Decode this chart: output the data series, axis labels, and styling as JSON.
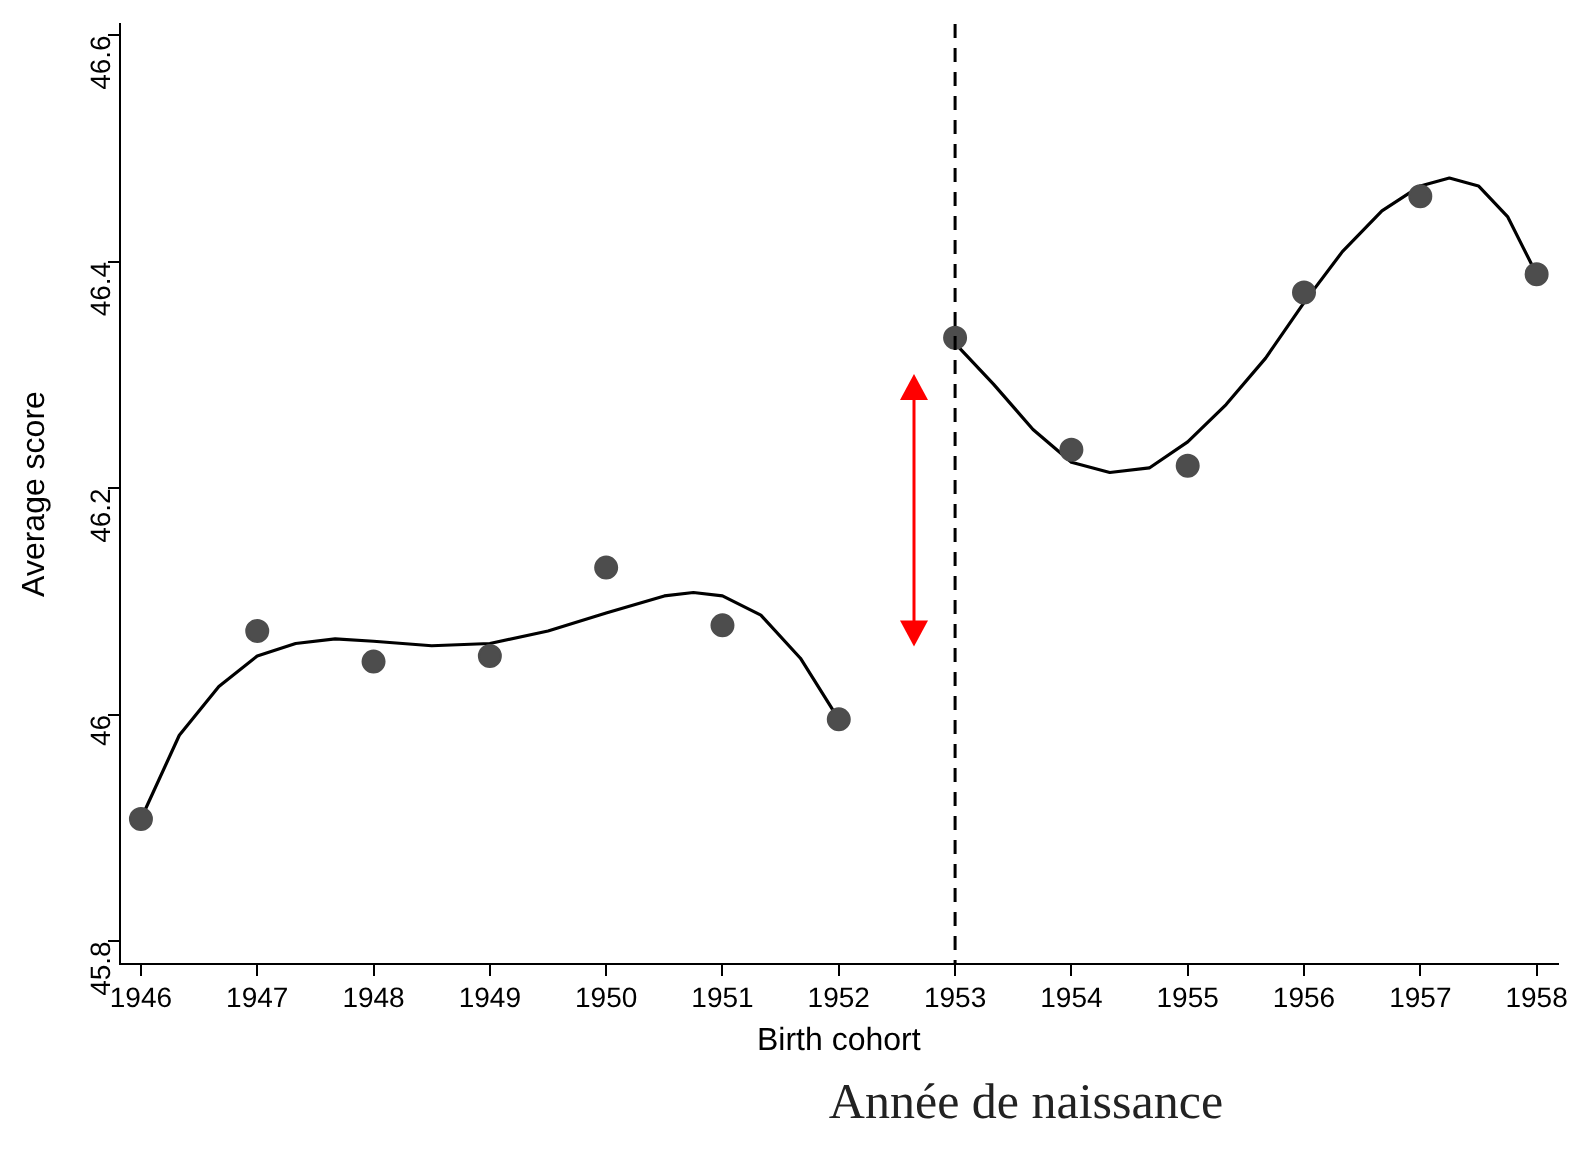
{
  "chart_data": {
    "type": "scatter",
    "xlabel": "Birth cohort",
    "ylabel": "Average score",
    "annotations": [
      "Année de naissance"
    ],
    "xlim": [
      1945.82,
      1958.18
    ],
    "xticks": [
      1946,
      1947,
      1948,
      1949,
      1950,
      1951,
      1952,
      1953,
      1954,
      1955,
      1956,
      1957,
      1958
    ],
    "ylim": [
      45.78,
      46.61
    ],
    "yticks": [
      45.8,
      46,
      46.2,
      46.4,
      46.6
    ],
    "grid": false,
    "legend": false,
    "marker": "circle",
    "series": [
      {
        "type": "scatter",
        "color": "#4d4d4d",
        "x": [
          1946,
          1947,
          1948,
          1949,
          1950,
          1951,
          1952,
          1953,
          1954,
          1955,
          1956,
          1957,
          1958
        ],
        "values": [
          45.908,
          46.074,
          46.047,
          46.052,
          46.13,
          46.079,
          45.996,
          46.333,
          46.234,
          46.22,
          46.373,
          46.458,
          46.389
        ]
      },
      {
        "type": "line",
        "marker": "none",
        "color": "#000000",
        "x": [
          1946,
          1946.33,
          1946.67,
          1947,
          1947.33,
          1947.67,
          1948,
          1948.5,
          1949,
          1949.5,
          1950,
          1950.5,
          1950.75,
          1951,
          1951.33,
          1951.67,
          1952
        ],
        "values": [
          45.908,
          45.982,
          46.025,
          46.052,
          46.063,
          46.067,
          46.065,
          46.061,
          46.063,
          46.074,
          46.09,
          46.105,
          46.108,
          46.105,
          46.088,
          46.05,
          45.996
        ]
      },
      {
        "type": "line",
        "marker": "none",
        "color": "#000000",
        "x": [
          1953,
          1953.33,
          1953.67,
          1954,
          1954.33,
          1954.67,
          1955,
          1955.33,
          1955.67,
          1956,
          1956.33,
          1956.67,
          1957,
          1957.25,
          1957.5,
          1957.75,
          1958
        ],
        "values": [
          46.328,
          46.292,
          46.252,
          46.223,
          46.214,
          46.218,
          46.241,
          46.274,
          46.315,
          46.364,
          46.409,
          46.445,
          46.467,
          46.474,
          46.467,
          46.44,
          46.389
        ]
      }
    ],
    "ref_lines": [
      {
        "axis": "x",
        "value": 1953,
        "line_style": "dashed",
        "color": "#000000"
      }
    ]
  }
}
